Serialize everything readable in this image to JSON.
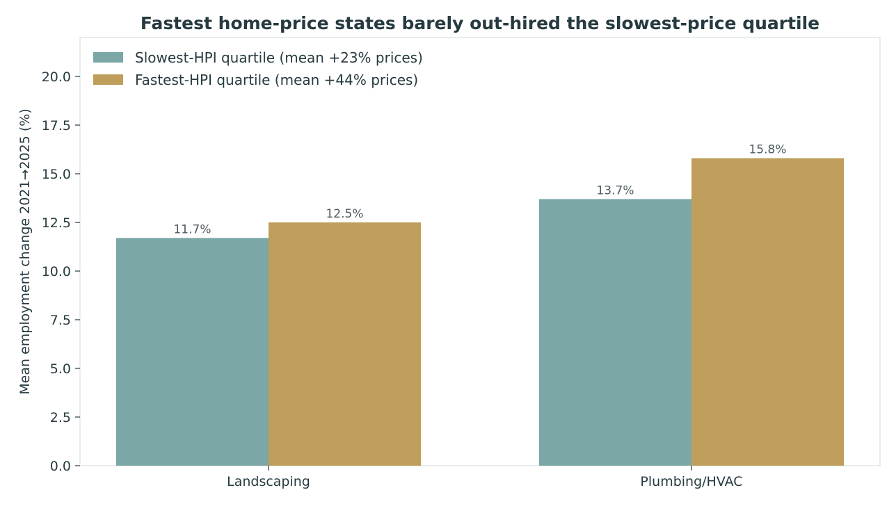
{
  "chart_data": {
    "type": "bar",
    "title": "Fastest home-price states barely out-hired the slowest-price quartile",
    "xlabel": "",
    "ylabel": "Mean employment change 2021→2025 (%)",
    "categories": [
      "Landscaping",
      "Plumbing/HVAC"
    ],
    "series": [
      {
        "name": "Slowest-HPI quartile (mean +23% prices)",
        "values": [
          11.7,
          13.7
        ],
        "value_labels": [
          "11.7%",
          "13.7%"
        ],
        "color": "#7ba7a6"
      },
      {
        "name": "Fastest-HPI quartile (mean +44% prices)",
        "values": [
          12.5,
          15.8
        ],
        "value_labels": [
          "12.5%",
          "15.8%"
        ],
        "color": "#be9e5a"
      }
    ],
    "ylim": [
      0,
      22
    ],
    "yticks": [
      0.0,
      2.5,
      5.0,
      7.5,
      10.0,
      12.5,
      15.0,
      17.5,
      20.0
    ],
    "ytick_labels": [
      "0.0",
      "2.5",
      "5.0",
      "7.5",
      "10.0",
      "12.5",
      "15.0",
      "17.5",
      "20.0"
    ],
    "grid": false,
    "legend_position": "top-left"
  }
}
